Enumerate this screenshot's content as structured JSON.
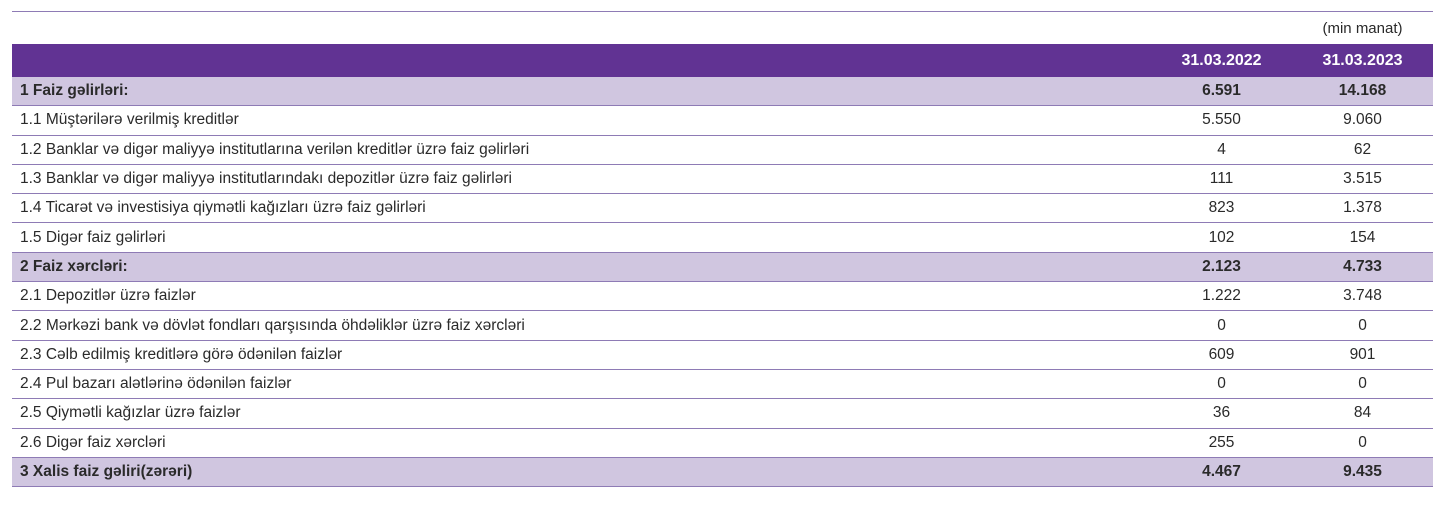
{
  "unit": "(min manat)",
  "columns": [
    "31.03.2022",
    "31.03.2023"
  ],
  "colors": {
    "header": "#613393",
    "subtotal": "#d0c6e0",
    "rule": "#8e7bb5"
  },
  "rows": [
    {
      "label": "1 Faiz gəlirləri:",
      "v1": "6.591",
      "v2": "14.168",
      "bold": true
    },
    {
      "label": "1.1 Müştərilərə verilmiş kreditlər",
      "v1": "5.550",
      "v2": "9.060"
    },
    {
      "label": "1.2 Banklar və digər maliyyə institutlarına verilən kreditlər üzrə faiz gəlirləri",
      "v1": "4",
      "v2": "62"
    },
    {
      "label": "1.3 Banklar və digər maliyyə institutlarındakı depozitlər üzrə faiz gəlirləri",
      "v1": "111",
      "v2": "3.515"
    },
    {
      "label": "1.4 Ticarət və investisiya qiymətli kağızları üzrə faiz gəlirləri",
      "v1": "823",
      "v2": "1.378"
    },
    {
      "label": "1.5 Digər faiz gəlirləri",
      "v1": "102",
      "v2": "154"
    },
    {
      "label": "2 Faiz xərcləri:",
      "v1": "2.123",
      "v2": "4.733",
      "bold": true
    },
    {
      "label": "2.1 Depozitlər üzrə faizlər",
      "v1": "1.222",
      "v2": "3.748"
    },
    {
      "label": "2.2 Mərkəzi bank və dövlət fondları qarşısında öhdəliklər üzrə faiz xərcləri",
      "v1": "0",
      "v2": "0"
    },
    {
      "label": "2.3 Cəlb edilmiş kreditlərə görə ödənilən faizlər",
      "v1": "609",
      "v2": "901"
    },
    {
      "label": "2.4 Pul bazarı alətlərinə ödənilən faizlər",
      "v1": "0",
      "v2": "0"
    },
    {
      "label": "2.5 Qiymətli kağızlar üzrə faizlər",
      "v1": "36",
      "v2": "84"
    },
    {
      "label": "2.6 Digər faiz xərcləri",
      "v1": "255",
      "v2": "0"
    },
    {
      "label": "3 Xalis faiz gəliri(zərəri)",
      "v1": "4.467",
      "v2": "9.435",
      "bold": true
    }
  ]
}
